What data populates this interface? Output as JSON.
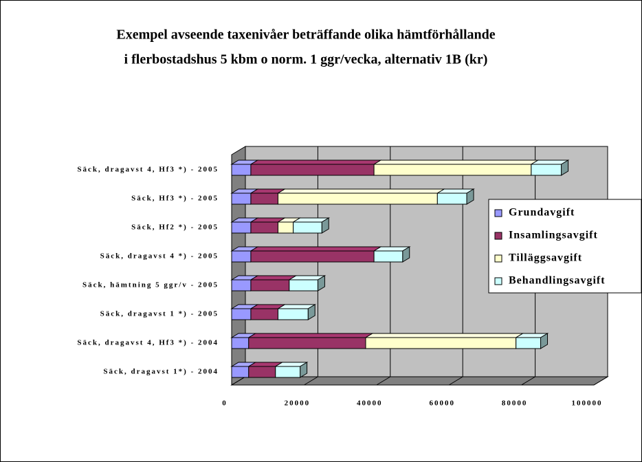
{
  "chart_data": {
    "type": "bar3d_stacked_horizontal",
    "title": [
      "Exempel avseende taxenivåer beträffande olika hämtförhållande",
      "i flerbostadshus 5 kbm o norm. 1 ggr/vecka, alternativ 1B (kr)"
    ],
    "categories": [
      "Säck, dragavst 1*) - 2004",
      "Säck, dragavst 4, Hf3 *) - 2004",
      "Säck, dragavst 1 *) - 2005",
      "Säck, hämtning 5 ggr/v - 2005",
      "Säck, dragavst 4 *) - 2005",
      "Säck, Hf2 *) - 2005",
      "Säck, Hf3 *) - 2005",
      "Säck, dragavst 4, Hf3 *) - 2005"
    ],
    "series": [
      {
        "name": "Grundavgift",
        "color": "#9999ff",
        "values": [
          4700,
          4700,
          5300,
          5300,
          5300,
          5300,
          5300,
          5300
        ]
      },
      {
        "name": "Insamlingsavgift",
        "color": "#993366",
        "values": [
          7400,
          32300,
          7500,
          10600,
          34000,
          7500,
          7500,
          34000
        ]
      },
      {
        "name": "Tilläggsavgift",
        "color": "#ffffcc",
        "values": [
          null,
          41500,
          null,
          null,
          null,
          4200,
          44000,
          43400
        ]
      },
      {
        "name": "Behandlingsavgift",
        "color": "#ccffff",
        "values": [
          6800,
          6800,
          8300,
          7900,
          7900,
          7900,
          8100,
          8300
        ]
      }
    ],
    "xlim": [
      0,
      100000
    ],
    "xticks": [
      0,
      20000,
      40000,
      60000,
      80000,
      100000
    ],
    "grid": true,
    "legend": "right"
  }
}
